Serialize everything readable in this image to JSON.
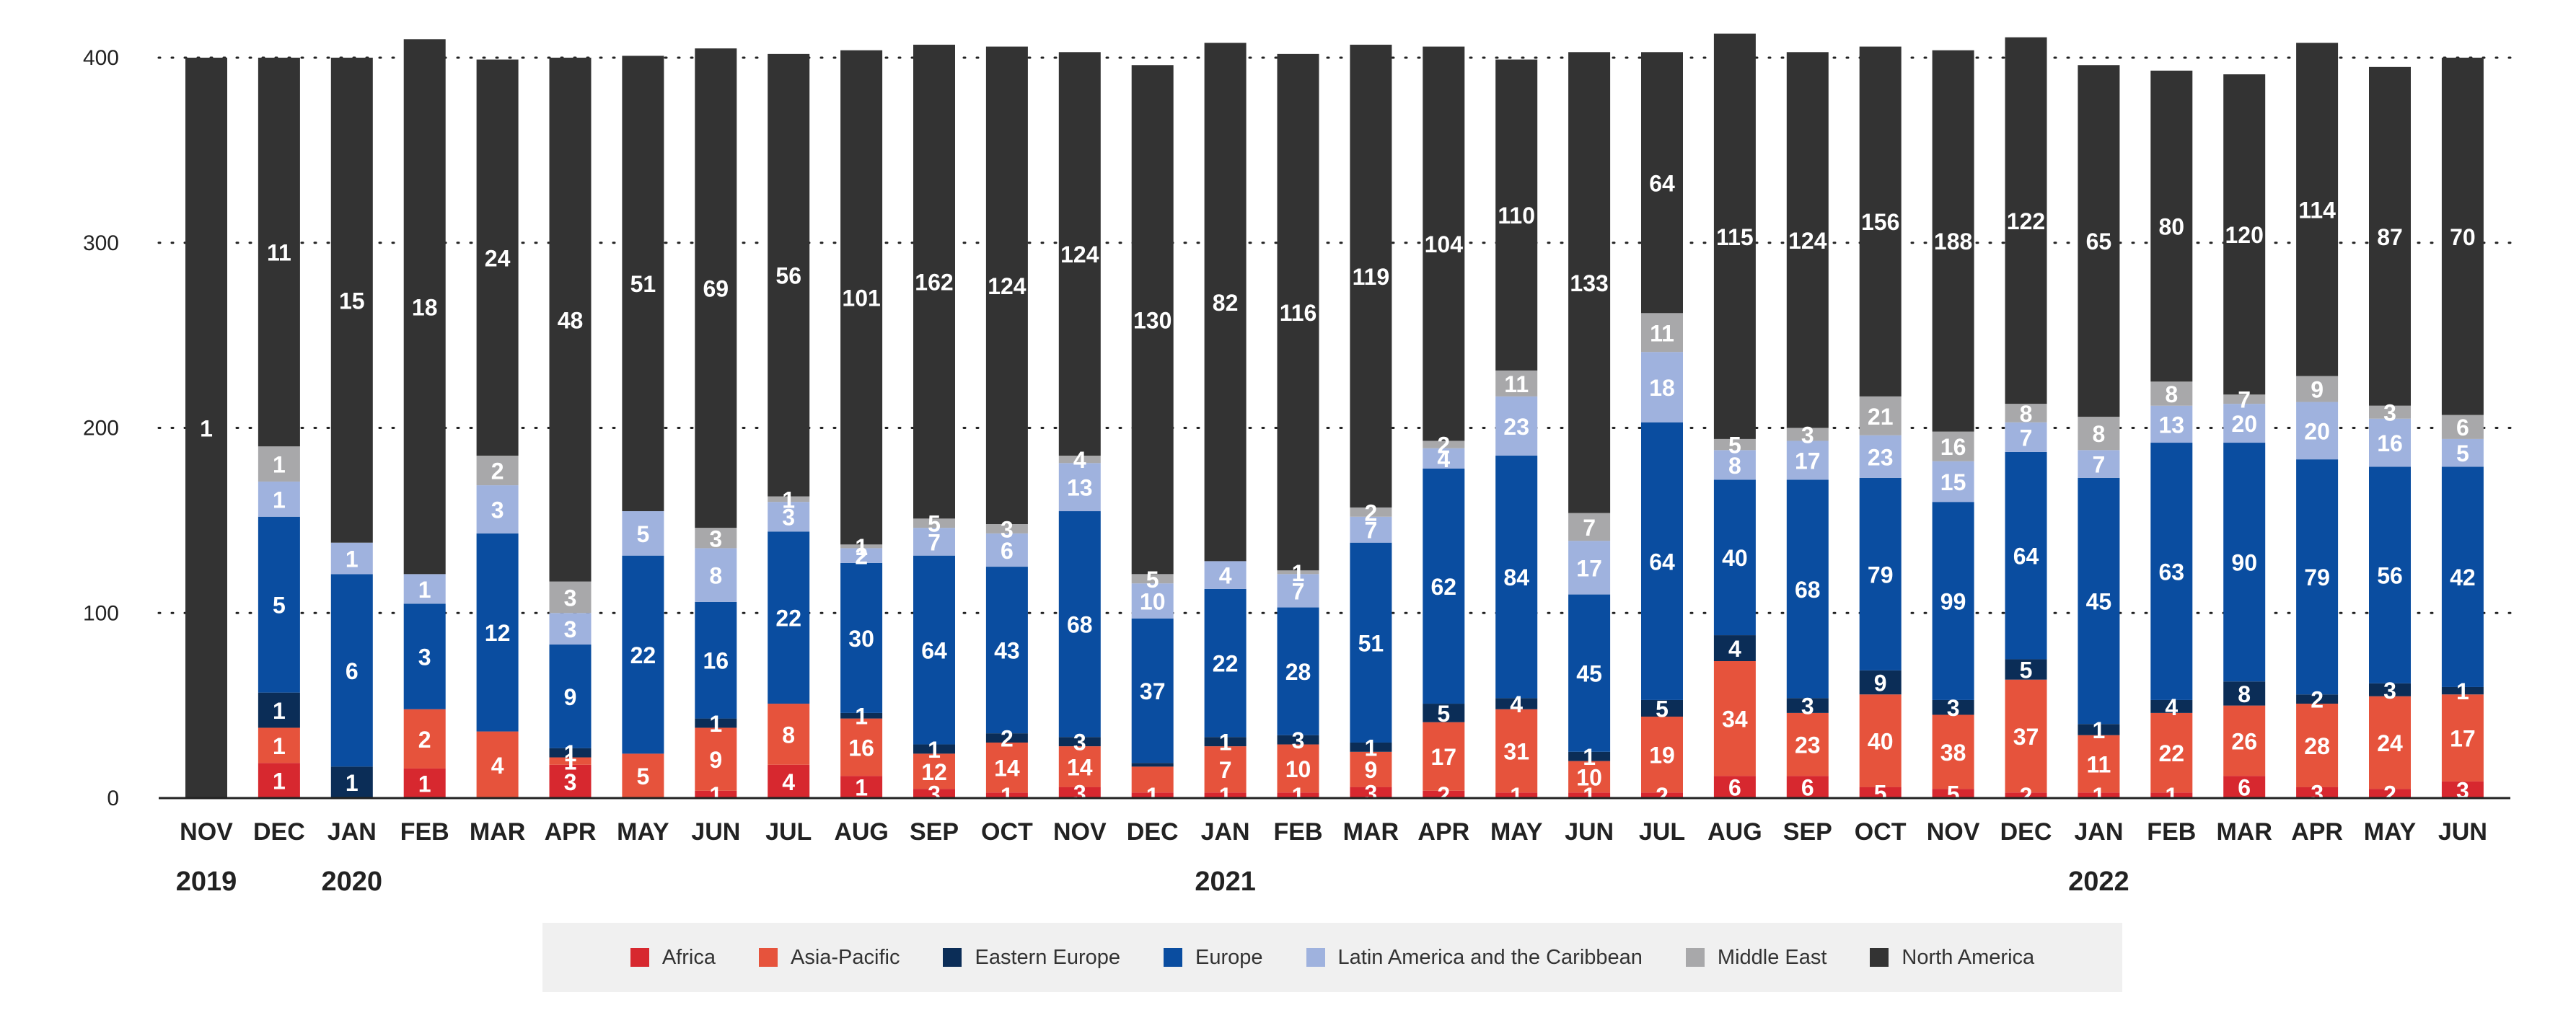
{
  "chart_data": {
    "type": "bar",
    "stacked": true,
    "categories": [
      "NOV",
      "DEC",
      "JAN",
      "FEB",
      "MAR",
      "APR",
      "MAY",
      "JUN",
      "JUL",
      "AUG",
      "SEP",
      "OCT",
      "NOV",
      "DEC",
      "JAN",
      "FEB",
      "MAR",
      "APR",
      "MAY",
      "JUN",
      "JUL",
      "AUG",
      "SEP",
      "OCT",
      "NOV",
      "DEC",
      "JAN",
      "FEB",
      "MAR",
      "APR",
      "MAY",
      "JUN"
    ],
    "year_labels": [
      {
        "index": 0,
        "label": "2019"
      },
      {
        "index": 2,
        "label": "2020"
      },
      {
        "index": 14,
        "label": "2021"
      },
      {
        "index": 26,
        "label": "2022"
      }
    ],
    "y_ticks": [
      0,
      100,
      200,
      300,
      400
    ],
    "ylim": [
      0,
      400
    ],
    "grid": "dotted horizontal",
    "legend_position": "bottom",
    "series": [
      {
        "name": "Africa",
        "color": "#d7282f",
        "values": [
          null,
          19,
          null,
          16,
          null,
          18,
          null,
          4,
          18,
          12,
          5,
          3,
          6,
          3,
          3,
          3,
          6,
          4,
          3,
          3,
          3,
          12,
          12,
          6,
          5,
          3,
          3,
          3,
          12,
          6,
          5,
          9
        ],
        "labels": [
          null,
          "1",
          null,
          "1",
          null,
          "3",
          null,
          "1",
          "4",
          "1",
          "3",
          "1",
          "3",
          "1",
          "1",
          "1",
          "3",
          "2",
          "1",
          "1",
          "2",
          "6",
          "6",
          "5",
          "5",
          "2",
          "1",
          "1",
          "6",
          "3",
          "2",
          "3"
        ]
      },
      {
        "name": "Asia-Pacific",
        "color": "#e6533c",
        "values": [
          null,
          19,
          null,
          32,
          36,
          4,
          24,
          34,
          33,
          31,
          19,
          27,
          22,
          14,
          25,
          26,
          19,
          37,
          45,
          17,
          41,
          62,
          34,
          50,
          40,
          61,
          31,
          43,
          38,
          45,
          50,
          47
        ],
        "labels": [
          null,
          "1",
          null,
          "2",
          "4",
          "1",
          "5",
          "9",
          "8",
          "16",
          "12",
          "14",
          "14",
          null,
          "7",
          "10",
          "9",
          "17",
          "31",
          "10",
          "19",
          "34",
          "23",
          "40",
          "38",
          "37",
          "11",
          "22",
          "26",
          "28",
          "24",
          "17"
        ]
      },
      {
        "name": "Eastern Europe",
        "color": "#0b2d57",
        "values": [
          null,
          19,
          17,
          null,
          null,
          5,
          null,
          5,
          null,
          3,
          5,
          5,
          5,
          2,
          5,
          5,
          5,
          10,
          6,
          5,
          9,
          14,
          8,
          13,
          8,
          11,
          6,
          7,
          13,
          5,
          7,
          4
        ],
        "labels": [
          null,
          "1",
          "1",
          null,
          null,
          "1",
          null,
          "1",
          null,
          "1",
          "1",
          "2",
          "3",
          null,
          "1",
          "3",
          "1",
          "5",
          "4",
          "1",
          "5",
          "4",
          "3",
          "9",
          "3",
          "5",
          "1",
          "4",
          "8",
          "2",
          "3",
          "1"
        ]
      },
      {
        "name": "Europe",
        "color": "#0a4da0",
        "values": [
          null,
          95,
          104,
          57,
          107,
          56,
          107,
          63,
          93,
          81,
          102,
          90,
          122,
          78,
          80,
          69,
          108,
          127,
          131,
          85,
          150,
          84,
          118,
          104,
          107,
          112,
          133,
          139,
          129,
          127,
          117,
          119
        ],
        "labels": [
          null,
          "5",
          "6",
          "3",
          "12",
          "9",
          "22",
          "16",
          "22",
          "30",
          "64",
          "43",
          "68",
          "37",
          "22",
          "28",
          "51",
          "62",
          "84",
          "45",
          "64",
          "40",
          "68",
          "79",
          "99",
          "64",
          "45",
          "63",
          "90",
          "79",
          "56",
          "42"
        ]
      },
      {
        "name": "Latin America and the Caribbean",
        "color": "#9fb2de",
        "values": [
          null,
          19,
          17,
          16,
          26,
          17,
          24,
          29,
          16,
          8,
          15,
          18,
          26,
          19,
          15,
          18,
          14,
          11,
          32,
          29,
          38,
          16,
          21,
          23,
          22,
          16,
          15,
          20,
          21,
          31,
          26,
          15
        ],
        "labels": [
          null,
          "1",
          "1",
          "1",
          "3",
          "3",
          "5",
          "8",
          "3",
          "2",
          "7",
          "6",
          "13",
          "10",
          "4",
          "7",
          "7",
          "4",
          "23",
          "17",
          "18",
          "8",
          "17",
          "23",
          "15",
          "7",
          "7",
          "13",
          "20",
          "20",
          "16",
          "5"
        ]
      },
      {
        "name": "Middle East",
        "color": "#a8a8aa",
        "values": [
          null,
          19,
          null,
          null,
          16,
          17,
          null,
          11,
          3,
          2,
          5,
          5,
          4,
          5,
          null,
          2,
          5,
          4,
          14,
          15,
          21,
          6,
          7,
          21,
          16,
          10,
          18,
          13,
          5,
          14,
          7,
          13
        ],
        "labels": [
          null,
          "1",
          null,
          null,
          "2",
          "3",
          null,
          "3",
          "1",
          "1",
          "5",
          "3",
          "4",
          "5",
          null,
          "1",
          "2",
          "2",
          "11",
          "7",
          "11",
          "5",
          "3",
          "21",
          "16",
          "8",
          "8",
          "8",
          "7",
          "9",
          "3",
          "6"
        ]
      },
      {
        "name": "North America",
        "color": "#333333",
        "values": [
          400,
          210,
          262,
          289,
          214,
          283,
          246,
          259,
          239,
          267,
          256,
          258,
          218,
          275,
          280,
          279,
          250,
          213,
          168,
          249,
          141,
          219,
          203,
          189,
          206,
          198,
          190,
          168,
          173,
          180,
          183,
          193
        ],
        "labels": [
          "1",
          "11",
          "15",
          "18",
          "24",
          "48",
          "51",
          "69",
          "56",
          "101",
          "162",
          "124",
          "124",
          "130",
          "82",
          "116",
          "119",
          "104",
          "110",
          "133",
          "64",
          "115",
          "124",
          "156",
          "188",
          "122",
          "65",
          "80",
          "120",
          "114",
          "87",
          "70"
        ]
      }
    ]
  }
}
